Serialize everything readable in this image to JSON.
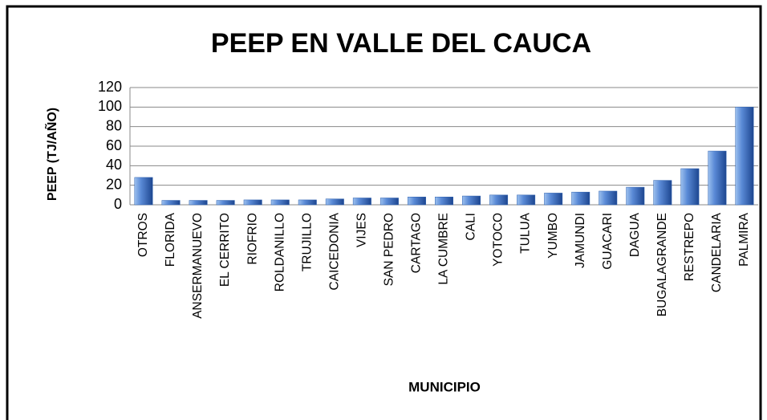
{
  "chart_data": {
    "type": "bar",
    "title": "PEEP EN VALLE DEL CAUCA",
    "x_label": "MUNICIPIO",
    "y_label": "PEEP  (TJ/AÑO)",
    "categories": [
      "OTROS",
      "FLORIDA",
      "ANSERMANUEVO",
      "EL CERRITO",
      "RIOFRIO",
      "ROLDANILLO",
      "TRUJILLO",
      "CAICEDONIA",
      "VIJES",
      "SAN PEDRO",
      "CARTAGO",
      "LA CUMBRE",
      "CALI",
      "YOTOCO",
      "TULUA",
      "YUMBO",
      "JAMUNDI",
      "GUACARI",
      "DAGUA",
      "BUGALAGRANDE",
      "RESTREPO",
      "CANDELARIA",
      "PALMIRA"
    ],
    "values": [
      28,
      4.5,
      4.5,
      4.5,
      5,
      5,
      5,
      6,
      7,
      7,
      8,
      8,
      9,
      10,
      10,
      12,
      13,
      14,
      18,
      25,
      37,
      55,
      100
    ],
    "color": "#2f62b0",
    "ylim": [
      0,
      120
    ],
    "yticks": [
      0,
      20,
      40,
      60,
      80,
      100,
      120
    ],
    "grid": true
  }
}
